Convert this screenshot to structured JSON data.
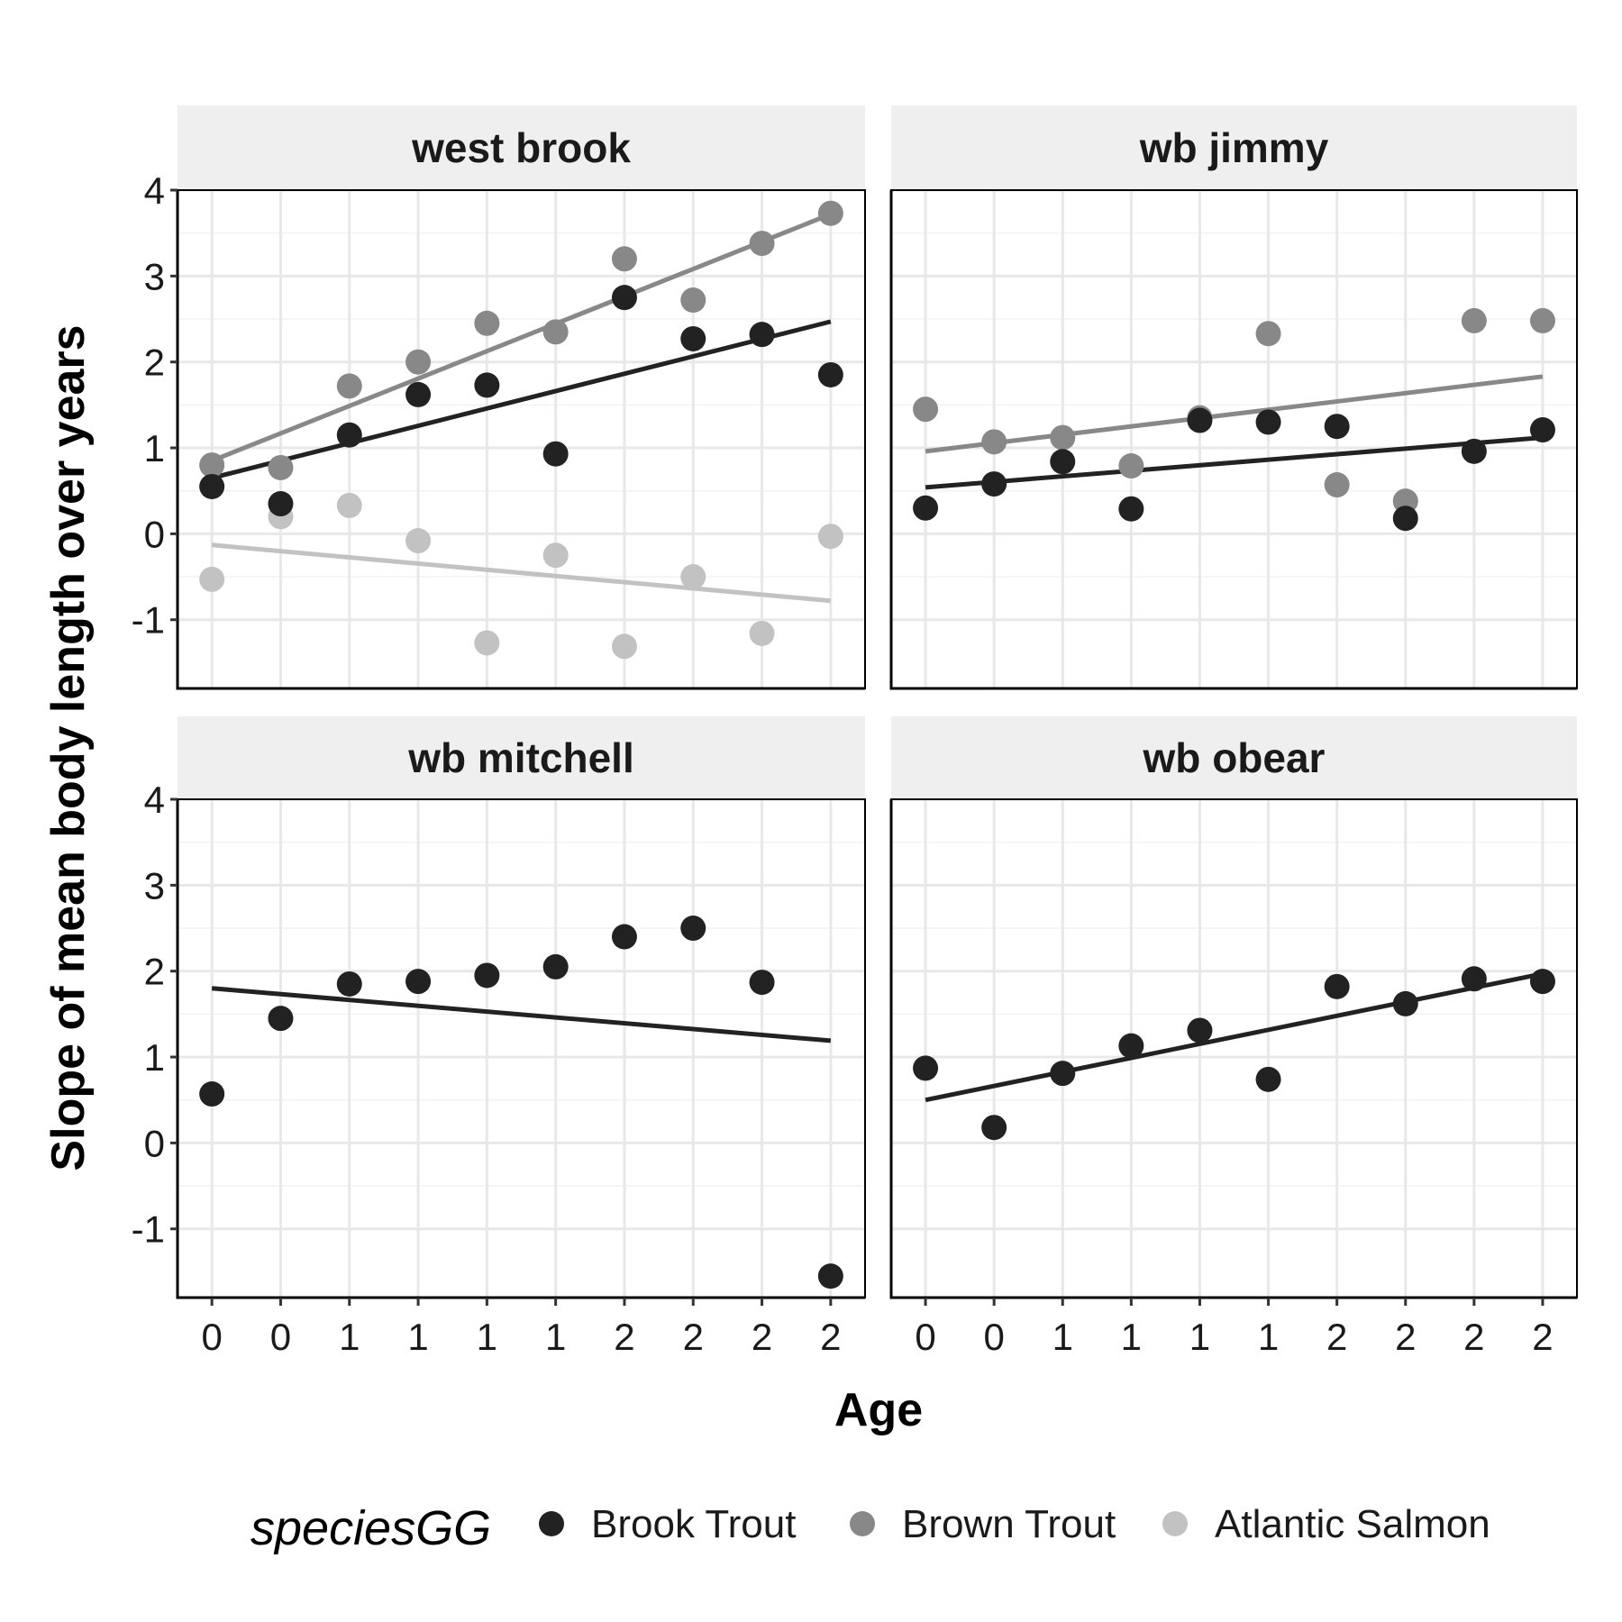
{
  "chart_data": {
    "type": "scatter",
    "facet_layout": "2x2",
    "xlabel": "Age",
    "ylabel": "Slope of mean body length over years",
    "x_tick_labels": [
      "0",
      "0",
      "1",
      "1",
      "1",
      "1",
      "2",
      "2",
      "2",
      "2"
    ],
    "y_ticks": [
      "-1",
      "0",
      "1",
      "2",
      "3",
      "4"
    ],
    "ylim": [
      -1.8,
      4
    ],
    "grid": true,
    "legend": {
      "title": "speciesGG",
      "placement": "bottom",
      "entries": [
        {
          "name": "Brook Trout",
          "color": "#222222"
        },
        {
          "name": "Brown Trout",
          "color": "#888888"
        },
        {
          "name": "Atlantic Salmon",
          "color": "#c2c2c2"
        }
      ]
    },
    "panels": [
      {
        "title": "west brook",
        "series": [
          {
            "name": "Brook Trout",
            "color": "#222222",
            "values": [
              0.55,
              0.35,
              1.15,
              1.62,
              1.73,
              0.93,
              2.75,
              2.27,
              2.32,
              1.85
            ],
            "fit": [
              0.65,
              2.47
            ]
          },
          {
            "name": "Brown Trout",
            "color": "#888888",
            "values": [
              0.8,
              0.77,
              1.72,
              2.0,
              2.45,
              2.35,
              3.2,
              2.72,
              3.38,
              3.73
            ],
            "fit": [
              0.85,
              3.72
            ]
          },
          {
            "name": "Atlantic Salmon",
            "color": "#c2c2c2",
            "values": [
              -0.53,
              0.2,
              0.33,
              -0.08,
              -1.27,
              -0.25,
              -1.31,
              -0.5,
              -1.16,
              -0.03
            ],
            "fit": [
              -0.13,
              -0.78
            ]
          }
        ]
      },
      {
        "title": "wb jimmy",
        "series": [
          {
            "name": "Brook Trout",
            "color": "#222222",
            "values": [
              0.3,
              0.58,
              0.84,
              0.29,
              1.32,
              1.3,
              1.25,
              0.18,
              0.96,
              1.21
            ],
            "fit": [
              0.54,
              1.12
            ]
          },
          {
            "name": "Brown Trout",
            "color": "#888888",
            "values": [
              1.45,
              1.07,
              1.12,
              0.79,
              1.35,
              2.33,
              0.57,
              0.38,
              2.48,
              2.48
            ],
            "fit": [
              0.96,
              1.83
            ]
          }
        ]
      },
      {
        "title": "wb mitchell",
        "series": [
          {
            "name": "Brook Trout",
            "color": "#222222",
            "values": [
              0.57,
              1.45,
              1.85,
              1.88,
              1.95,
              2.05,
              2.4,
              2.5,
              1.87,
              -1.55
            ],
            "fit": [
              1.8,
              1.19
            ]
          }
        ]
      },
      {
        "title": "wb obear",
        "series": [
          {
            "name": "Brook Trout",
            "color": "#222222",
            "values": [
              0.87,
              0.18,
              0.81,
              1.13,
              1.31,
              0.74,
              1.82,
              1.62,
              1.91,
              1.88
            ],
            "fit": [
              0.5,
              1.97
            ]
          }
        ]
      }
    ]
  }
}
